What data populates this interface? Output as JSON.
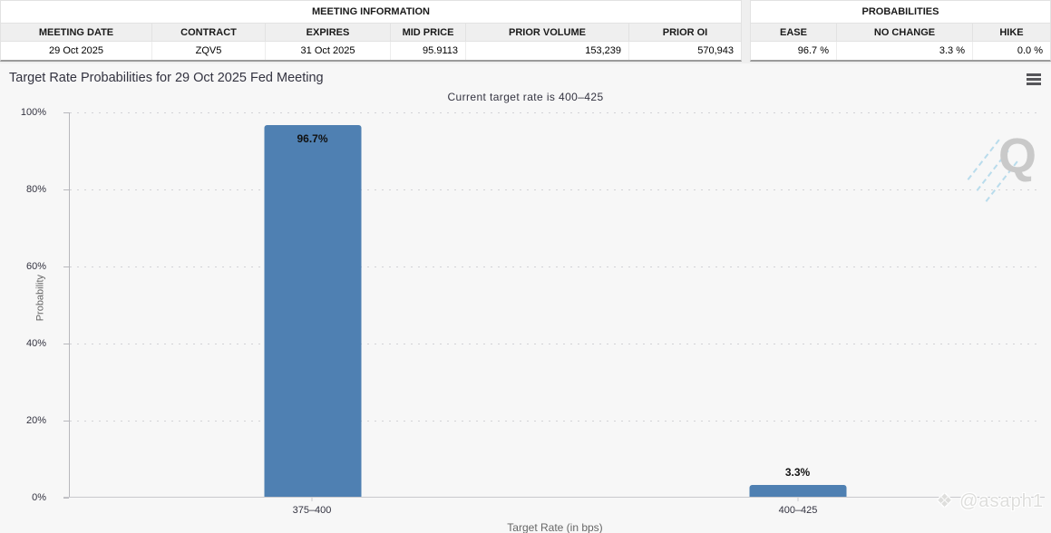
{
  "meeting_table": {
    "title": "MEETING INFORMATION",
    "columns": [
      "MEETING DATE",
      "CONTRACT",
      "EXPIRES",
      "MID PRICE",
      "PRIOR VOLUME",
      "PRIOR OI"
    ],
    "row": [
      "29 Oct 2025",
      "ZQV5",
      "31 Oct 2025",
      "95.9113",
      "153,239",
      "570,943"
    ]
  },
  "probabilities_table": {
    "title": "PROBABILITIES",
    "columns": [
      "EASE",
      "NO CHANGE",
      "HIKE"
    ],
    "row": [
      "96.7 %",
      "3.3 %",
      "0.0 %"
    ]
  },
  "chart_data": {
    "type": "bar",
    "title": "Target Rate Probabilities for 29 Oct 2025 Fed Meeting",
    "subtitle": "Current target rate is 400–425",
    "categories": [
      "375–400",
      "400–425"
    ],
    "values": [
      96.7,
      3.3
    ],
    "bar_labels": [
      "96.7%",
      "3.3%"
    ],
    "xlabel": "Target Rate (in bps)",
    "ylabel": "Probability",
    "ylim": [
      0,
      100
    ],
    "yticks_top_to_bottom": [
      "100%",
      "80%",
      "60%",
      "40%",
      "20%",
      "0%"
    ],
    "grid": "dotted horizontal",
    "legend": "none",
    "bar_color": "#4f80b2",
    "plot_background": "#f7f7f7"
  },
  "icons": {
    "menu": "hamburger-menu-icon",
    "watermark_letter": "Q",
    "credit_diamond": "❖"
  },
  "watermark_credit": "@asaph1"
}
